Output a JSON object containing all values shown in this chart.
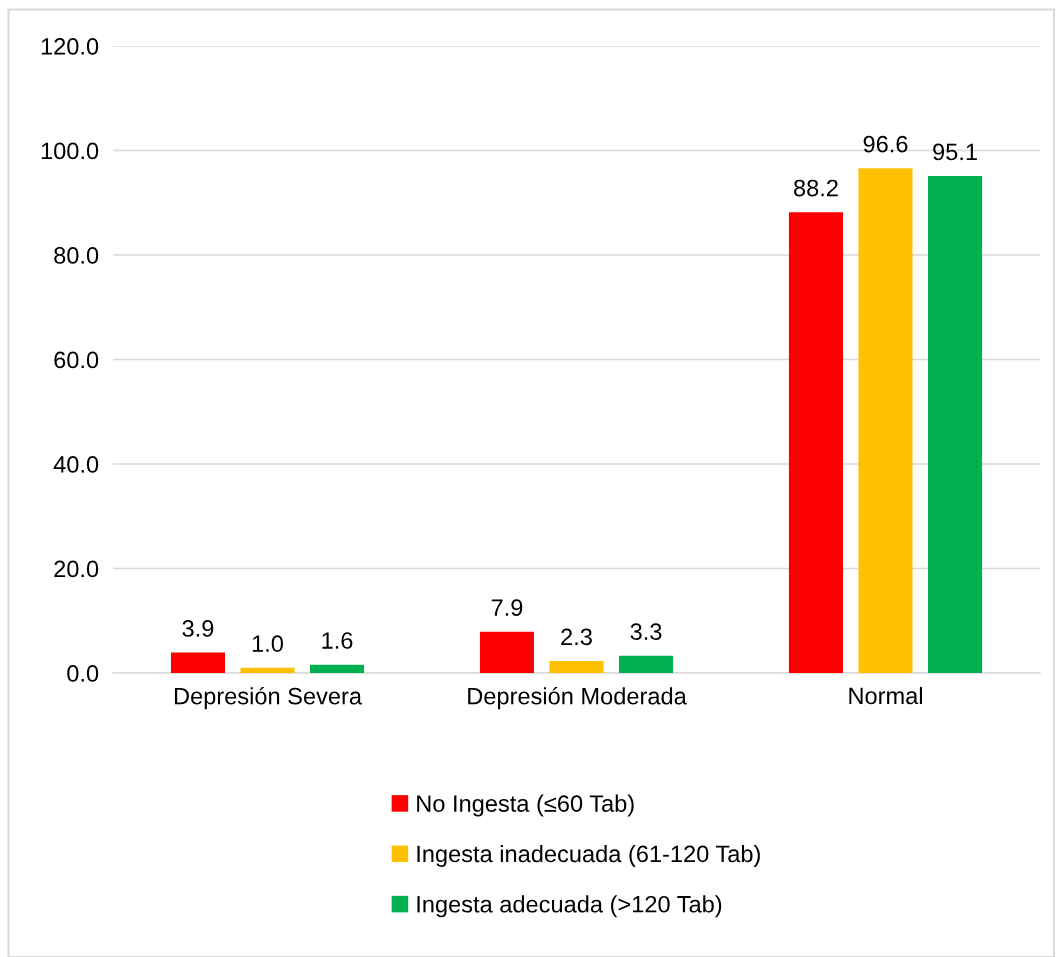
{
  "chart_data": {
    "type": "bar",
    "categories": [
      "Depresión Severa",
      "Depresión Moderada",
      "Normal"
    ],
    "series": [
      {
        "name": "No Ingesta (≤60 Tab)",
        "color": "#ff0000",
        "values": [
          3.9,
          7.9,
          88.2
        ],
        "value_labels": [
          "3.9",
          "7.9",
          "88.2"
        ]
      },
      {
        "name": "Ingesta inadecuada (61-120 Tab)",
        "color": "#ffc000",
        "values": [
          1.0,
          2.3,
          96.6
        ],
        "value_labels": [
          "1.0",
          "2.3",
          "96.6"
        ]
      },
      {
        "name": "Ingesta adecuada (>120 Tab)",
        "color": "#00b050",
        "values": [
          1.6,
          3.3,
          95.1
        ],
        "value_labels": [
          "1.6",
          "3.3",
          "95.1"
        ]
      }
    ],
    "ylim": [
      0,
      120
    ],
    "yticks": [
      {
        "value": 0,
        "label": "0.0"
      },
      {
        "value": 20,
        "label": "20.0"
      },
      {
        "value": 40,
        "label": "40.0"
      },
      {
        "value": 60,
        "label": "60.0"
      },
      {
        "value": 80,
        "label": "80.0"
      },
      {
        "value": 100,
        "label": "100.0"
      },
      {
        "value": 120,
        "label": "120.0"
      }
    ],
    "grid": "y",
    "legend": "bottom"
  }
}
